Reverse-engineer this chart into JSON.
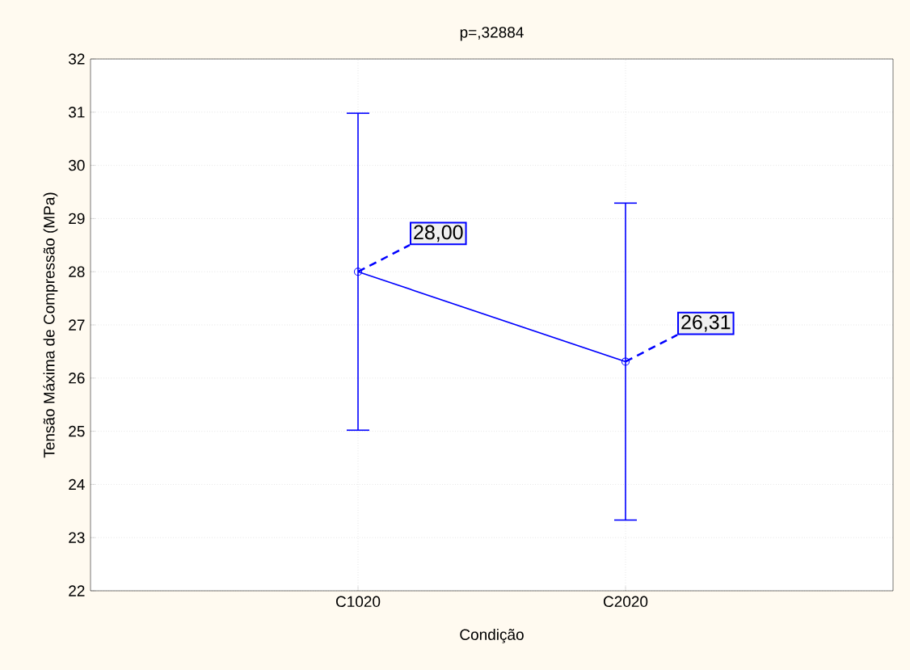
{
  "chart_data": {
    "type": "line",
    "title": "p=,32884",
    "xlabel": "Condição",
    "ylabel": "Tensão Máxima de Compressão (MPa)",
    "categories": [
      "C1020",
      "C2020"
    ],
    "series": [
      {
        "color": "#0000ff",
        "values": [
          28.0,
          26.31
        ],
        "errors": [
          2.98,
          2.98
        ],
        "value_labels": [
          "28,00",
          "26,31"
        ]
      }
    ],
    "ylim": [
      22,
      32
    ],
    "yticks": [
      22,
      23,
      24,
      25,
      26,
      27,
      28,
      29,
      30,
      31,
      32
    ],
    "grid": true,
    "marker": "circle",
    "line_style": "solid"
  }
}
